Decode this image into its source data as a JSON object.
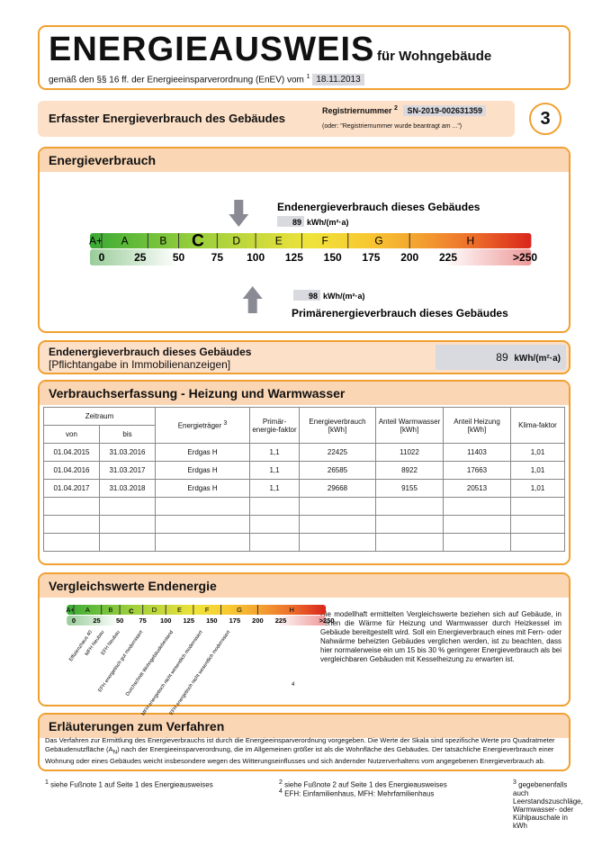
{
  "header": {
    "title": "ENERGIEAUSWEIS",
    "subtitle": "für Wohngebäude",
    "basis": "gemäß den §§ 16 ff. der Energieeinsparverordnung (EnEV) vom",
    "basis_note": "1",
    "date": "18.11.2013"
  },
  "recorded": {
    "title": "Erfasster Energieverbrauch des Gebäudes",
    "reg_label": "Registriernummer",
    "reg_note_mark": "2",
    "reg_number": "SN-2019-002631359",
    "reg_alt": "(oder: \"Registriernummer wurde beantragt am ...\")",
    "page": "3"
  },
  "energy": {
    "title": "Energieverbrauch",
    "end_label": "Endenergieverbrauch dieses Gebäudes",
    "end_value": 89,
    "unit": "kWh/(m²·a)",
    "primary_value": 98,
    "primary_label": "Primärenergieverbrauch dieses Gebäudes",
    "classes": [
      "A+",
      "A",
      "B",
      "C",
      "D",
      "E",
      "F",
      "G",
      "H"
    ],
    "highlight_class": 3,
    "scale": [
      0,
      25,
      50,
      75,
      100,
      125,
      150,
      175,
      200,
      225,
      {
        "value": 250,
        "label": ">250"
      }
    ]
  },
  "mandatory": {
    "line1": "Endenergieverbrauch dieses Gebäudes",
    "line2": "[Pflichtangabe in Immobilienanzeigen]"
  },
  "table": {
    "title": "Verbrauchserfassung - Heizung und Warmwasser",
    "period": "Zeitraum",
    "from": "von",
    "to": "bis",
    "carrier": "Energieträger",
    "carrier_note": "3",
    "primary_factor": "Primär-energie-faktor",
    "consumption": "Energieverbrauch [kWh]",
    "hot_water": "Anteil Warmwasser [kWh]",
    "heating": "Anteil Heizung [kWh]",
    "climate": "Klima-faktor",
    "rows": [
      [
        "01.04.2015",
        "31.03.2016",
        "Erdgas H",
        "1,1",
        "22425",
        "11022",
        "11403",
        "1,01"
      ],
      [
        "01.04.2016",
        "31.03.2017",
        "Erdgas H",
        "1,1",
        "26585",
        "8922",
        "17663",
        "1,01"
      ],
      [
        "01.04.2017",
        "31.03.2018",
        "Erdgas H",
        "1,1",
        "29668",
        "9155",
        "20513",
        "1,01"
      ]
    ]
  },
  "comparison": {
    "title": "Vergleichswerte Endenergie",
    "buildings": [
      "Effizienzhaus 40",
      "MFH Neubau",
      "EFH Neubau",
      "EFH energetisch gut modernisiert",
      "Durchschnitt Wohngebäudebestand",
      "MFH energetisch nicht wesentlich modernisiert",
      "EFH energetisch nicht wesentlich modernisiert"
    ],
    "note_mark": "4",
    "text": "Die modellhaft ermittelten Vergleichswerte beziehen sich auf Gebäude, in denen die Wärme für Heizung und Warmwasser durch Heizkessel im Gebäude bereitgestellt wird. Soll ein Energieverbrauch eines mit Fern- oder Nahwärme beheizten Gebäudes verglichen werden, ist zu beachten, dass hier normalerweise ein um 15 bis 30 % geringerer Energieverbrauch als bei vergleichbaren Gebäuden mit Kesselheizung zu erwarten ist."
  },
  "explanation": {
    "title": "Erläuterungen zum Verfahren",
    "text_a": "Das Verfahren zur Ermittlung des Energieverbrauchs ist durch die Energieeinsparverordnung vorgegeben. Die Werte der Skala sind spezifische Werte pro Quadratmeter Gebäudenutzfläche (A",
    "text_sub": "N",
    "text_b": ") nach der Energieeinsparverordnung, die im Allgemeinen größer ist als die Wohnfläche des Gebäudes. Der tatsächliche Energieverbrauch einer Wohnung oder eines Gebäudes weicht insbesondere wegen des Witterungseinflusses und sich ändernder Nutzerverhaltens vom angegebenen Energieverbrauch ab."
  },
  "footnotes": [
    {
      "mark": "1",
      "text": "siehe Fußnote 1 auf Seite 1 des Energieausweises"
    },
    {
      "mark": "2",
      "text": "siehe Fußnote 2 auf Seite 1 des Energieausweises"
    },
    {
      "mark": "3",
      "text": "gegebenenfalls auch Leerstandszuschläge, Warmwasser- oder Kühlpauschale in kWh"
    },
    {
      "mark": "4",
      "text": "EFH: Einfamilienhaus, MFH: Mehrfamilienhaus"
    }
  ]
}
